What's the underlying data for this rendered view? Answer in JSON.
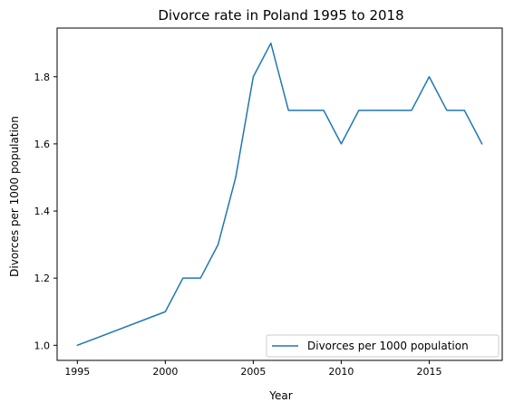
{
  "chart_data": {
    "type": "line",
    "title": "Divorce rate in Poland 1995 to 2018",
    "xlabel": "Year",
    "ylabel": "Divorces per 1000 population",
    "x": [
      1995,
      2000,
      2001,
      2002,
      2003,
      2004,
      2005,
      2006,
      2007,
      2008,
      2009,
      2010,
      2011,
      2012,
      2013,
      2014,
      2015,
      2016,
      2017,
      2018
    ],
    "series": [
      {
        "name": "Divorces per 1000 population",
        "values": [
          1.0,
          1.1,
          1.2,
          1.2,
          1.3,
          1.5,
          1.8,
          1.9,
          1.7,
          1.7,
          1.7,
          1.6,
          1.7,
          1.7,
          1.7,
          1.7,
          1.8,
          1.7,
          1.7,
          1.6
        ],
        "color": "#1f77b4"
      }
    ],
    "xticks": [
      1995,
      2000,
      2005,
      2010,
      2015
    ],
    "xtick_labels": [
      "1995",
      "2000",
      "2005",
      "2010",
      "2015"
    ],
    "yticks": [
      1.0,
      1.2,
      1.4,
      1.6,
      1.8
    ],
    "ytick_labels": [
      "1.0",
      "1.2",
      "1.4",
      "1.6",
      "1.8"
    ],
    "xlim": [
      1993.85,
      2019.15
    ],
    "ylim": [
      0.955,
      1.945
    ],
    "grid": false,
    "legend_position": "lower right"
  }
}
